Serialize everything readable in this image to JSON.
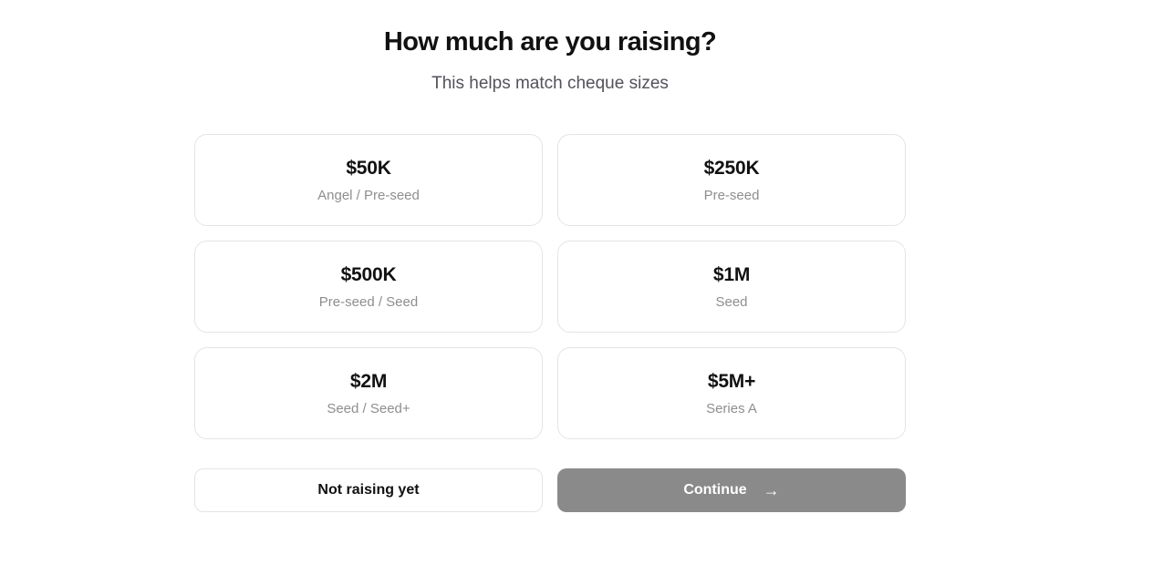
{
  "page": {
    "title": "How much are you raising?",
    "subtitle": "This helps match cheque sizes"
  },
  "options": [
    {
      "amount": "$50K",
      "stage": "Angel / Pre-seed"
    },
    {
      "amount": "$250K",
      "stage": "Pre-seed"
    },
    {
      "amount": "$500K",
      "stage": "Pre-seed / Seed"
    },
    {
      "amount": "$1M",
      "stage": "Seed"
    },
    {
      "amount": "$2M",
      "stage": "Seed / Seed+"
    },
    {
      "amount": "$5M+",
      "stage": "Series A"
    }
  ],
  "actions": {
    "not_raising_label": "Not raising yet",
    "continue_label": "Continue",
    "continue_arrow": "→"
  },
  "colors": {
    "text_primary": "#111111",
    "subtitle": "#52525b",
    "text_muted": "#8e8e8e",
    "card_border": "#e4e4e4",
    "continue_bg": "#8a8a8a"
  }
}
